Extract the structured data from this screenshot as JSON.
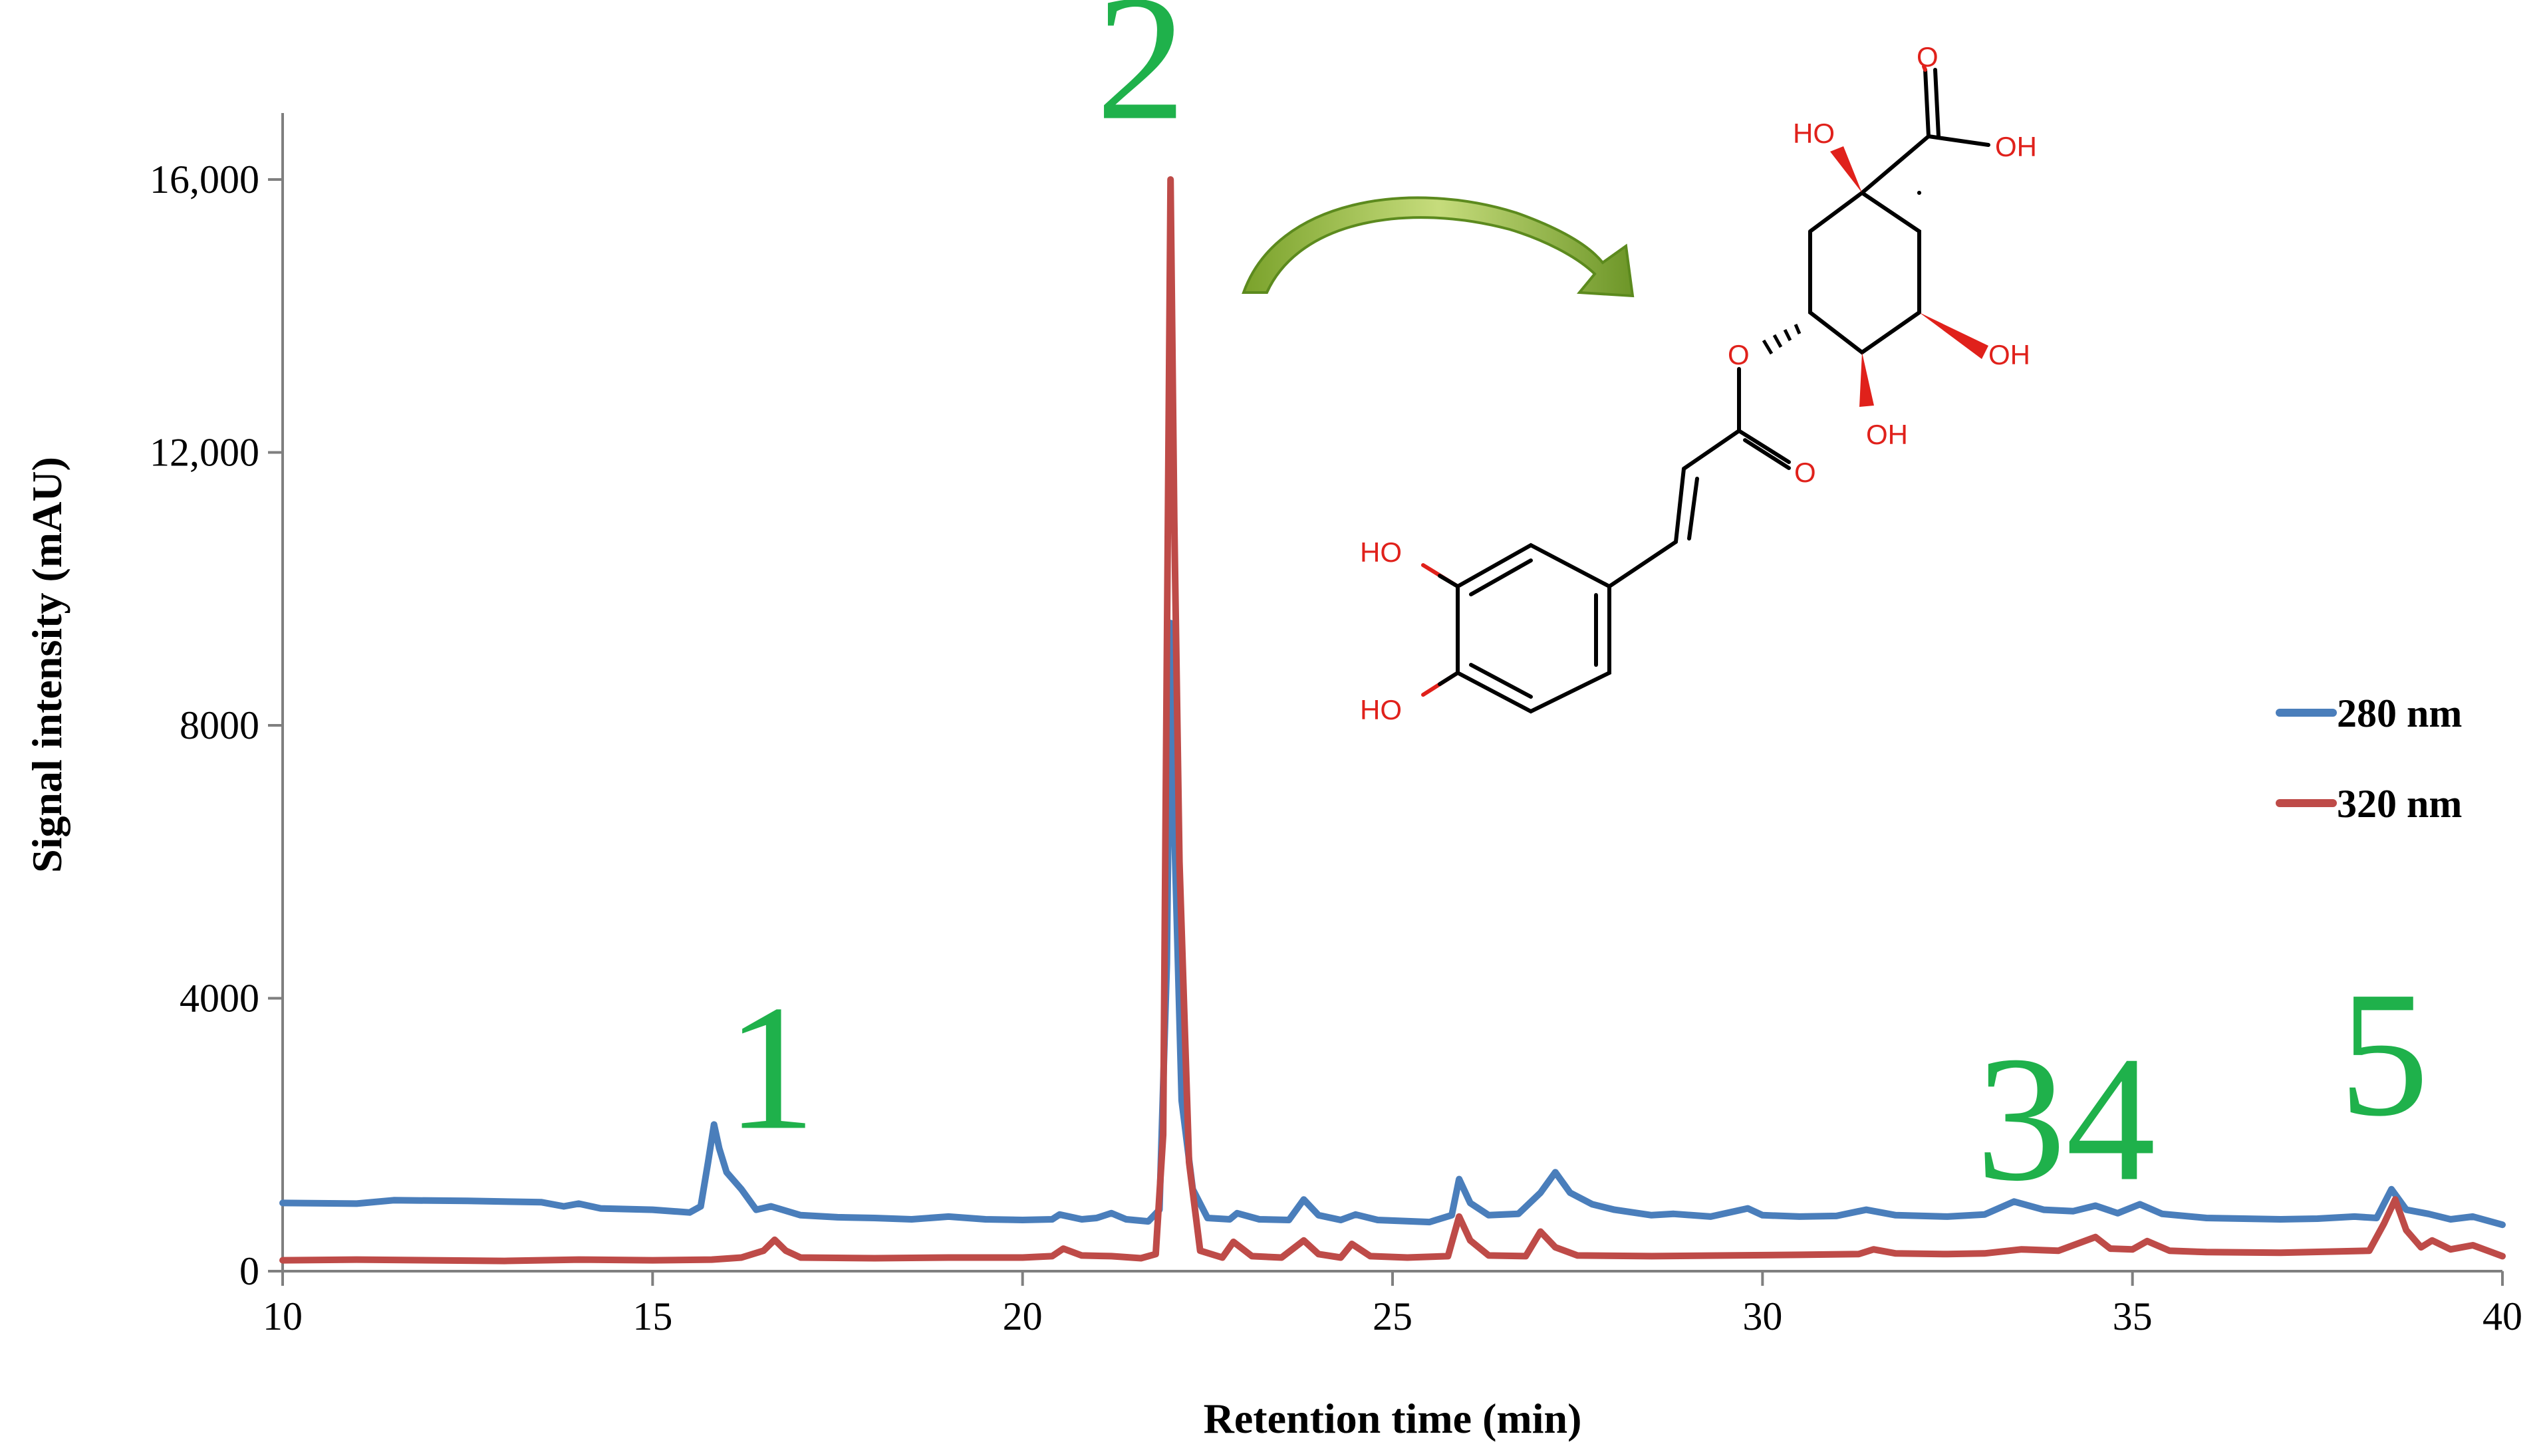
{
  "chart_data": {
    "type": "line",
    "title": "",
    "xlabel": "Retention time (min)",
    "ylabel": "Signal intensity (mAU)",
    "xlim": [
      10,
      40
    ],
    "ylim": [
      0,
      17000
    ],
    "xticks": [
      10,
      15,
      20,
      25,
      30,
      35,
      40
    ],
    "xtick_labels": [
      "10",
      "15",
      "20",
      "25",
      "30",
      "35",
      "40"
    ],
    "yticks": [
      0,
      4000,
      8000,
      12000,
      16000
    ],
    "ytick_labels": [
      "0",
      "4000",
      "8000",
      "12,000",
      "16,000"
    ],
    "grid": false,
    "legend_position": "right",
    "series": [
      {
        "name": "280 nm",
        "color": "#4a7ebb",
        "points": [
          [
            10,
            1000
          ],
          [
            11,
            990
          ],
          [
            11.5,
            1040
          ],
          [
            12.5,
            1030
          ],
          [
            13.5,
            1010
          ],
          [
            13.8,
            950
          ],
          [
            14,
            990
          ],
          [
            14.3,
            920
          ],
          [
            15,
            900
          ],
          [
            15.5,
            860
          ],
          [
            15.65,
            950
          ],
          [
            15.75,
            1600
          ],
          [
            15.83,
            2150
          ],
          [
            15.9,
            1800
          ],
          [
            16.0,
            1450
          ],
          [
            16.2,
            1200
          ],
          [
            16.4,
            900
          ],
          [
            16.6,
            950
          ],
          [
            17,
            820
          ],
          [
            17.5,
            790
          ],
          [
            18,
            780
          ],
          [
            18.5,
            760
          ],
          [
            19,
            800
          ],
          [
            19.5,
            760
          ],
          [
            20,
            750
          ],
          [
            20.4,
            760
          ],
          [
            20.5,
            830
          ],
          [
            20.8,
            760
          ],
          [
            21,
            780
          ],
          [
            21.2,
            850
          ],
          [
            21.4,
            760
          ],
          [
            21.7,
            730
          ],
          [
            21.85,
            900
          ],
          [
            21.95,
            4500
          ],
          [
            22.0,
            9500
          ],
          [
            22.05,
            6500
          ],
          [
            22.15,
            2500
          ],
          [
            22.3,
            1200
          ],
          [
            22.5,
            780
          ],
          [
            22.8,
            760
          ],
          [
            22.9,
            850
          ],
          [
            23.2,
            760
          ],
          [
            23.6,
            750
          ],
          [
            23.8,
            1050
          ],
          [
            24.0,
            820
          ],
          [
            24.3,
            750
          ],
          [
            24.5,
            830
          ],
          [
            24.8,
            750
          ],
          [
            25.5,
            720
          ],
          [
            25.8,
            820
          ],
          [
            25.9,
            1350
          ],
          [
            26.05,
            1000
          ],
          [
            26.3,
            820
          ],
          [
            26.7,
            840
          ],
          [
            27.0,
            1150
          ],
          [
            27.2,
            1450
          ],
          [
            27.4,
            1150
          ],
          [
            27.7,
            980
          ],
          [
            28,
            900
          ],
          [
            28.5,
            820
          ],
          [
            28.8,
            840
          ],
          [
            29.3,
            800
          ],
          [
            29.8,
            920
          ],
          [
            30,
            820
          ],
          [
            30.5,
            800
          ],
          [
            31,
            810
          ],
          [
            31.4,
            900
          ],
          [
            31.8,
            820
          ],
          [
            32.5,
            800
          ],
          [
            33,
            830
          ],
          [
            33.4,
            1020
          ],
          [
            33.8,
            900
          ],
          [
            34.2,
            880
          ],
          [
            34.5,
            960
          ],
          [
            34.8,
            850
          ],
          [
            35.1,
            980
          ],
          [
            35.4,
            840
          ],
          [
            36,
            780
          ],
          [
            36.5,
            770
          ],
          [
            37,
            760
          ],
          [
            37.5,
            770
          ],
          [
            38,
            800
          ],
          [
            38.3,
            780
          ],
          [
            38.5,
            1200
          ],
          [
            38.7,
            900
          ],
          [
            39,
            840
          ],
          [
            39.3,
            760
          ],
          [
            39.6,
            800
          ],
          [
            40,
            680
          ]
        ]
      },
      {
        "name": "320 nm",
        "color": "#be4b48",
        "points": [
          [
            10,
            160
          ],
          [
            11,
            170
          ],
          [
            12,
            160
          ],
          [
            13,
            150
          ],
          [
            14,
            170
          ],
          [
            15,
            160
          ],
          [
            15.8,
            170
          ],
          [
            16.2,
            200
          ],
          [
            16.5,
            300
          ],
          [
            16.65,
            460
          ],
          [
            16.8,
            300
          ],
          [
            17,
            200
          ],
          [
            18,
            190
          ],
          [
            19,
            200
          ],
          [
            20,
            200
          ],
          [
            20.4,
            220
          ],
          [
            20.55,
            330
          ],
          [
            20.8,
            230
          ],
          [
            21.2,
            220
          ],
          [
            21.6,
            190
          ],
          [
            21.8,
            250
          ],
          [
            21.9,
            2000
          ],
          [
            21.95,
            9000
          ],
          [
            22.0,
            16000
          ],
          [
            22.05,
            11000
          ],
          [
            22.12,
            6000
          ],
          [
            22.25,
            1600
          ],
          [
            22.4,
            300
          ],
          [
            22.7,
            200
          ],
          [
            22.85,
            430
          ],
          [
            23.1,
            220
          ],
          [
            23.5,
            200
          ],
          [
            23.8,
            450
          ],
          [
            24.0,
            250
          ],
          [
            24.3,
            200
          ],
          [
            24.45,
            400
          ],
          [
            24.7,
            220
          ],
          [
            25.2,
            200
          ],
          [
            25.75,
            220
          ],
          [
            25.9,
            800
          ],
          [
            26.05,
            450
          ],
          [
            26.3,
            230
          ],
          [
            26.8,
            220
          ],
          [
            27.0,
            580
          ],
          [
            27.2,
            350
          ],
          [
            27.5,
            230
          ],
          [
            28.5,
            220
          ],
          [
            29.5,
            230
          ],
          [
            30.5,
            240
          ],
          [
            31.3,
            250
          ],
          [
            31.5,
            320
          ],
          [
            31.8,
            260
          ],
          [
            32.5,
            250
          ],
          [
            33,
            260
          ],
          [
            33.5,
            320
          ],
          [
            34,
            300
          ],
          [
            34.5,
            500
          ],
          [
            34.7,
            330
          ],
          [
            35,
            320
          ],
          [
            35.2,
            440
          ],
          [
            35.5,
            300
          ],
          [
            36,
            280
          ],
          [
            37,
            270
          ],
          [
            37.8,
            290
          ],
          [
            38.2,
            300
          ],
          [
            38.4,
            700
          ],
          [
            38.55,
            1050
          ],
          [
            38.7,
            600
          ],
          [
            38.9,
            350
          ],
          [
            39.05,
            450
          ],
          [
            39.3,
            320
          ],
          [
            39.6,
            380
          ],
          [
            39.8,
            300
          ],
          [
            40,
            220
          ]
        ]
      }
    ],
    "annotations": [
      {
        "text": "1",
        "x": 16.6,
        "y": 2100
      },
      {
        "text": "2",
        "x": 21.6,
        "y": 16900
      },
      {
        "text": "34",
        "x": 34.1,
        "y": 1350
      },
      {
        "text": "5",
        "x": 38.4,
        "y": 2300
      }
    ]
  },
  "structure_labels": {
    "ho_top": "HO",
    "oh_acid": "OH",
    "o_carbonyl_top": "O",
    "o_ester": "O",
    "oh_right": "OH",
    "oh_bottom": "OH",
    "o_ester_carbonyl": "O",
    "ho_aryl_top": "HO",
    "ho_aryl_bottom": "HO"
  }
}
